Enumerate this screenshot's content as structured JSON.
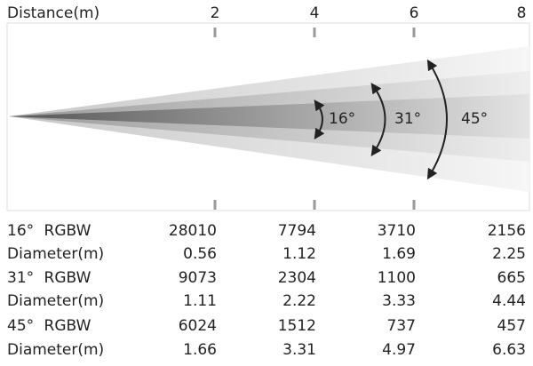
{
  "header": {
    "title": "Distance(m)",
    "distances": [
      "2",
      "4",
      "6",
      "8"
    ]
  },
  "beams": [
    {
      "label": "16°"
    },
    {
      "label": "31°"
    },
    {
      "label": "45°"
    }
  ],
  "table": {
    "rows": [
      {
        "label": "16° RGBW",
        "values": [
          "28010",
          "7794",
          "3710",
          "2156"
        ]
      },
      {
        "label": "Diameter(m)",
        "values": [
          "0.56",
          "1.12",
          "1.69",
          "2.25"
        ]
      },
      {
        "label": "31° RGBW",
        "values": [
          "9073",
          "2304",
          "1100",
          "665"
        ]
      },
      {
        "label": "Diameter(m)",
        "values": [
          "1.11",
          "2.22",
          "3.33",
          "4.44"
        ]
      },
      {
        "label": "45° RGBW",
        "values": [
          "6024",
          "1512",
          "737",
          "457"
        ]
      },
      {
        "label": "Diameter(m)",
        "values": [
          "1.66",
          "3.31",
          "4.97",
          "6.63"
        ]
      }
    ]
  }
}
